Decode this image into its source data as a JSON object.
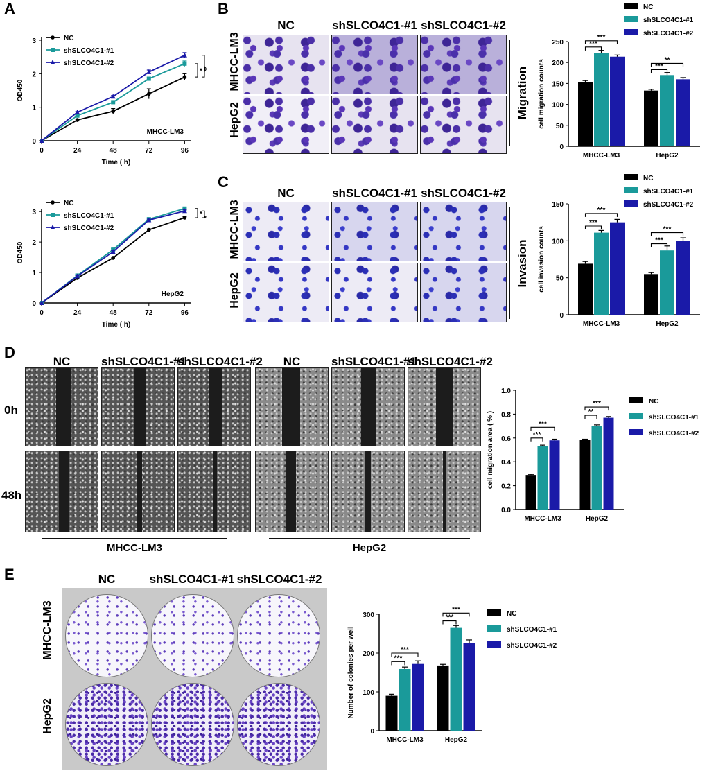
{
  "panels": {
    "a": "A",
    "b": "B",
    "c": "C",
    "d": "D",
    "e": "E"
  },
  "groups": [
    "NC",
    "shSLCO4C1-#1",
    "shSLCO4C1-#2"
  ],
  "cells": [
    "MHCC-LM3",
    "HepG2"
  ],
  "migration_label": "Migration",
  "invasion_label": "Invasion",
  "times": [
    "0h",
    "48h"
  ],
  "colors": {
    "nc": "#000000",
    "sh1": "#1a9a9a",
    "sh2": "#1a1aa8"
  },
  "chart_data": [
    {
      "id": "growth-lm3",
      "type": "line",
      "x": [
        0,
        24,
        48,
        72,
        96
      ],
      "series": [
        {
          "name": "NC",
          "values": [
            0,
            0.62,
            0.88,
            1.4,
            1.9
          ],
          "err": [
            0,
            0.03,
            0.08,
            0.15,
            0.1
          ]
        },
        {
          "name": "shSLCO4C1-#1",
          "values": [
            0,
            0.75,
            1.15,
            1.85,
            2.3
          ],
          "err": [
            0,
            0.03,
            0.04,
            0.05,
            0.08
          ]
        },
        {
          "name": "shSLCO4C1-#2",
          "values": [
            0,
            0.85,
            1.32,
            2.05,
            2.55
          ],
          "err": [
            0,
            0.02,
            0.03,
            0.06,
            0.08
          ]
        }
      ],
      "xlabel": "Time ( h)",
      "ylabel": "OD450",
      "annotation": "MHCC-LM3",
      "xticks": [
        0,
        24,
        48,
        72,
        96
      ],
      "yticks": [
        0,
        1,
        2,
        3
      ],
      "ylim": [
        0,
        3
      ],
      "xlim": [
        0,
        100
      ],
      "sig": [
        "*",
        "**"
      ]
    },
    {
      "id": "growth-hepg2",
      "type": "line",
      "x": [
        0,
        24,
        48,
        72,
        96
      ],
      "series": [
        {
          "name": "NC",
          "values": [
            0,
            0.82,
            1.48,
            2.4,
            2.8
          ],
          "err": [
            0,
            0.02,
            0.03,
            0.03,
            0.03
          ]
        },
        {
          "name": "shSLCO4C1-#1",
          "values": [
            0,
            0.9,
            1.75,
            2.75,
            3.1
          ],
          "err": [
            0,
            0.02,
            0.04,
            0.04,
            0.05
          ]
        },
        {
          "name": "shSLCO4C1-#2",
          "values": [
            0,
            0.88,
            1.68,
            2.72,
            3.02
          ],
          "err": [
            0,
            0.02,
            0.04,
            0.03,
            0.04
          ]
        }
      ],
      "xlabel": "Time ( h)",
      "ylabel": "OD450",
      "annotation": "HepG2",
      "xticks": [
        0,
        24,
        48,
        72,
        96
      ],
      "yticks": [
        0,
        1,
        2,
        3
      ],
      "ylim": [
        0,
        3.3
      ],
      "xlim": [
        0,
        100
      ],
      "sig": [
        "*",
        "*"
      ]
    },
    {
      "id": "migration-counts",
      "type": "bar",
      "categories": [
        "MHCC-LM3",
        "HepG2"
      ],
      "series": [
        {
          "name": "NC",
          "values": [
            153,
            133
          ],
          "err": [
            4,
            3
          ]
        },
        {
          "name": "shSLCO4C1-#1",
          "values": [
            223,
            170
          ],
          "err": [
            6,
            6
          ]
        },
        {
          "name": "shSLCO4C1-#2",
          "values": [
            214,
            160
          ],
          "err": [
            4,
            4
          ]
        }
      ],
      "ylabel": "cell migration counts",
      "ylim": [
        0,
        250
      ],
      "yticks": [
        0,
        50,
        100,
        150,
        200,
        250
      ],
      "brackets": [
        {
          "cat": 0,
          "s1": 0,
          "s2": 1,
          "y": 237,
          "label": "***"
        },
        {
          "cat": 0,
          "s1": 0,
          "s2": 2,
          "y": 252,
          "label": "***"
        },
        {
          "cat": 1,
          "s1": 0,
          "s2": 1,
          "y": 183,
          "label": "***"
        },
        {
          "cat": 1,
          "s1": 0,
          "s2": 2,
          "y": 198,
          "label": "**"
        }
      ]
    },
    {
      "id": "invasion-counts",
      "type": "bar",
      "categories": [
        "MHCC-LM3",
        "HepG2"
      ],
      "series": [
        {
          "name": "NC",
          "values": [
            69,
            55
          ],
          "err": [
            3,
            2
          ]
        },
        {
          "name": "shSLCO4C1-#1",
          "values": [
            111,
            87
          ],
          "err": [
            3,
            6
          ]
        },
        {
          "name": "shSLCO4C1-#2",
          "values": [
            125,
            100
          ],
          "err": [
            4,
            4
          ]
        }
      ],
      "ylabel": "cell invasion counts",
      "ylim": [
        0,
        150
      ],
      "yticks": [
        0,
        50,
        100,
        150
      ],
      "brackets": [
        {
          "cat": 0,
          "s1": 0,
          "s2": 1,
          "y": 120,
          "label": "***"
        },
        {
          "cat": 0,
          "s1": 0,
          "s2": 2,
          "y": 137,
          "label": "***"
        },
        {
          "cat": 1,
          "s1": 0,
          "s2": 1,
          "y": 96,
          "label": "***"
        },
        {
          "cat": 1,
          "s1": 0,
          "s2": 2,
          "y": 111,
          "label": "***"
        }
      ]
    },
    {
      "id": "wound-area",
      "type": "bar",
      "categories": [
        "MHCC-LM3",
        "HepG2"
      ],
      "series": [
        {
          "name": "NC",
          "values": [
            0.29,
            0.585
          ],
          "err": [
            0.005,
            0.005
          ]
        },
        {
          "name": "shSLCO4C1-#1",
          "values": [
            0.53,
            0.7
          ],
          "err": [
            0.01,
            0.01
          ]
        },
        {
          "name": "shSLCO4C1-#2",
          "values": [
            0.58,
            0.77
          ],
          "err": [
            0.01,
            0.01
          ]
        }
      ],
      "ylabel": "cell migration area ( % )",
      "ylim": [
        0,
        1.0
      ],
      "yticks": [
        0.0,
        0.2,
        0.4,
        0.6,
        0.8,
        1.0
      ],
      "tickFormat": "1dp",
      "brackets": [
        {
          "cat": 0,
          "s1": 0,
          "s2": 1,
          "y": 0.6,
          "label": "***"
        },
        {
          "cat": 0,
          "s1": 0,
          "s2": 2,
          "y": 0.69,
          "label": "***"
        },
        {
          "cat": 1,
          "s1": 0,
          "s2": 1,
          "y": 0.79,
          "label": "**"
        },
        {
          "cat": 1,
          "s1": 0,
          "s2": 2,
          "y": 0.86,
          "label": "***"
        }
      ]
    },
    {
      "id": "colonies",
      "type": "bar",
      "categories": [
        "MHCC-LM3",
        "HepG2"
      ],
      "series": [
        {
          "name": "NC",
          "values": [
            90,
            168
          ],
          "err": [
            4,
            3
          ]
        },
        {
          "name": "shSLCO4C1-#1",
          "values": [
            159,
            265
          ],
          "err": [
            5,
            6
          ]
        },
        {
          "name": "shSLCO4C1-#2",
          "values": [
            172,
            226
          ],
          "err": [
            8,
            8
          ]
        }
      ],
      "ylabel": "Number of colonies per well",
      "ylim": [
        0,
        300
      ],
      "yticks": [
        0,
        100,
        200,
        300
      ],
      "brackets": [
        {
          "cat": 0,
          "s1": 0,
          "s2": 1,
          "y": 178,
          "label": "***"
        },
        {
          "cat": 0,
          "s1": 0,
          "s2": 2,
          "y": 200,
          "label": "***"
        },
        {
          "cat": 1,
          "s1": 0,
          "s2": 1,
          "y": 283,
          "label": "***"
        },
        {
          "cat": 1,
          "s1": 0,
          "s2": 2,
          "y": 303,
          "label": "***"
        }
      ]
    }
  ]
}
